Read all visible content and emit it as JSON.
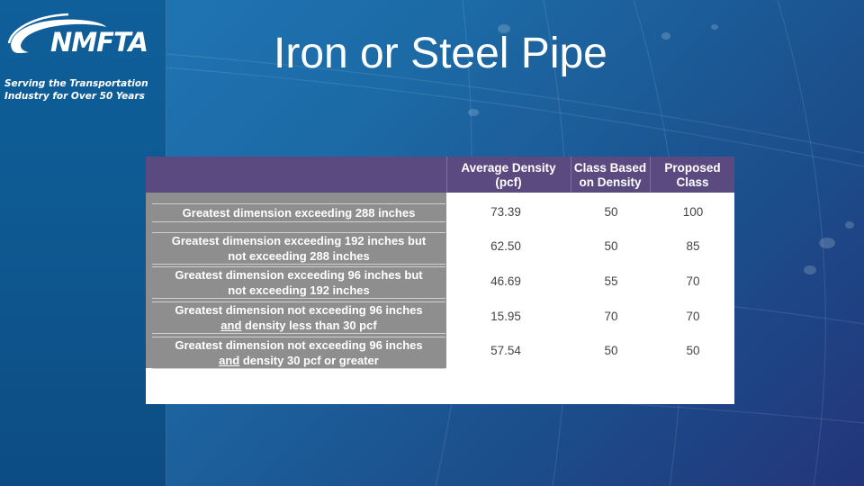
{
  "sidebar": {
    "logo_text": "NMFTA",
    "tagline_line1": "Serving the Transportation",
    "tagline_line2": "Industry for Over 50 Years"
  },
  "slide": {
    "title": "Iron or Steel Pipe"
  },
  "table": {
    "headers": {
      "density_line1": "Average Density",
      "density_line2": "(pcf)",
      "class_density_line1": "Class Based",
      "class_density_line2": "on Density",
      "proposed_line1": "Proposed",
      "proposed_line2": "Class"
    },
    "rows": [
      {
        "label_line1": "Greatest dimension exceeding 288 inches",
        "label_line2": "",
        "label_underline": "",
        "density": "73.39",
        "class_density": "50",
        "proposed": "100"
      },
      {
        "label_line1": "Greatest dimension exceeding 192 inches but",
        "label_line2": "not exceeding 288 inches",
        "label_underline": "",
        "density": "62.50",
        "class_density": "50",
        "proposed": "85"
      },
      {
        "label_line1": "Greatest dimension exceeding 96 inches but",
        "label_line2": "not exceeding 192 inches",
        "label_underline": "",
        "density": "46.69",
        "class_density": "55",
        "proposed": "70"
      },
      {
        "label_line1": "Greatest dimension not exceeding 96 inches",
        "label_line2": " density less than 30 pcf",
        "label_underline": "and",
        "density": "15.95",
        "class_density": "70",
        "proposed": "70"
      },
      {
        "label_line1": "Greatest dimension not exceeding 96 inches",
        "label_line2": " density 30 pcf or greater",
        "label_underline": "and",
        "density": "57.54",
        "class_density": "50",
        "proposed": "50"
      }
    ]
  },
  "colors": {
    "header_band": "#5b4a80",
    "label_column": "#8e8e8e",
    "background": "#1c6aa6"
  }
}
